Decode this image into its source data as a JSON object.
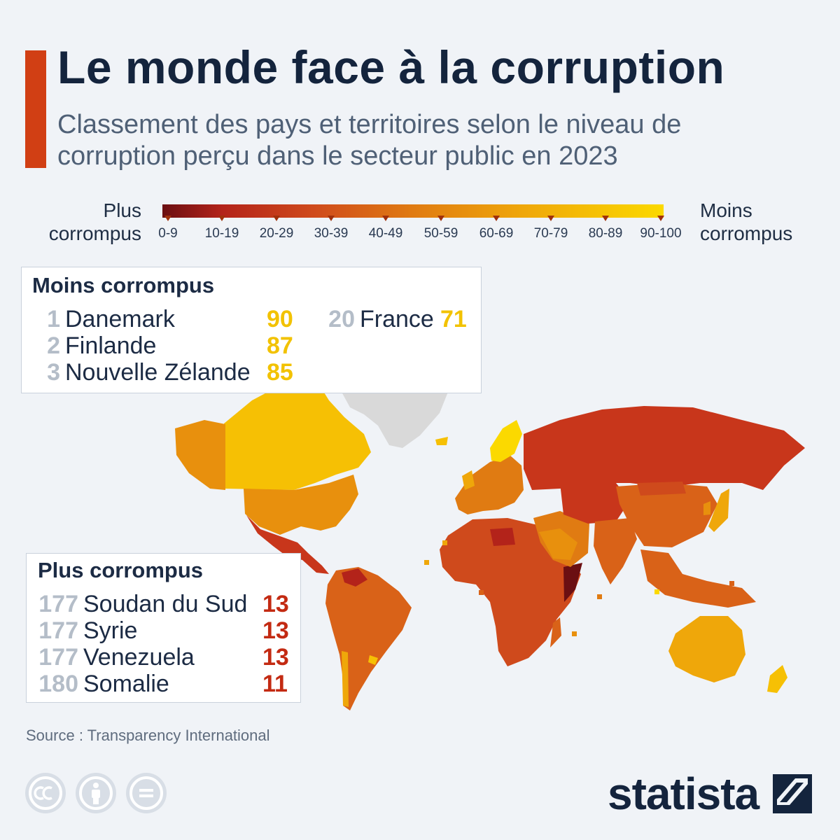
{
  "title": "Le monde face à la corruption",
  "subtitle": "Classement des pays et territoires selon le niveau de corruption perçu dans le secteur public en 2023",
  "legend": {
    "left_label": "Plus corrompus",
    "right_label": "Moins corrompus",
    "bins": [
      "0-9",
      "10-19",
      "20-29",
      "30-39",
      "40-49",
      "50-59",
      "60-69",
      "70-79",
      "80-89",
      "90-100"
    ],
    "colors": [
      "#6b0f12",
      "#b3231a",
      "#c8361b",
      "#cf4a1c",
      "#d96218",
      "#e07b12",
      "#e8900d",
      "#efa70a",
      "#f6c004",
      "#fbd900"
    ]
  },
  "colors": {
    "accent": "#d13f14",
    "title": "#14243d",
    "score_least_corrupt": "#f2c200",
    "score_most_corrupt": "#c32a12",
    "no_data": "#d9d9d9"
  },
  "least_corrupt": {
    "heading": "Moins corrompus",
    "rows": [
      {
        "rank": "1",
        "country": "Danemark",
        "score": "90"
      },
      {
        "rank": "2",
        "country": "Finlande",
        "score": "87"
      },
      {
        "rank": "3",
        "country": "Nouvelle Zélande",
        "score": "85"
      },
      {
        "rank": "20",
        "country": "France",
        "score": "71"
      }
    ]
  },
  "most_corrupt": {
    "heading": "Plus corrompus",
    "rows": [
      {
        "rank": "177",
        "country": "Soudan du Sud",
        "score": "13"
      },
      {
        "rank": "177",
        "country": "Syrie",
        "score": "13"
      },
      {
        "rank": "177",
        "country": "Venezuela",
        "score": "13"
      },
      {
        "rank": "180",
        "country": "Somalie",
        "score": "11"
      }
    ]
  },
  "source": "Source : Transparency International",
  "footer": {
    "license_icons": [
      "creative-commons-icon",
      "attribution-person-icon",
      "no-derivatives-equals-icon"
    ],
    "brand": "statista",
    "brand_icon": "statista-logo-icon"
  }
}
